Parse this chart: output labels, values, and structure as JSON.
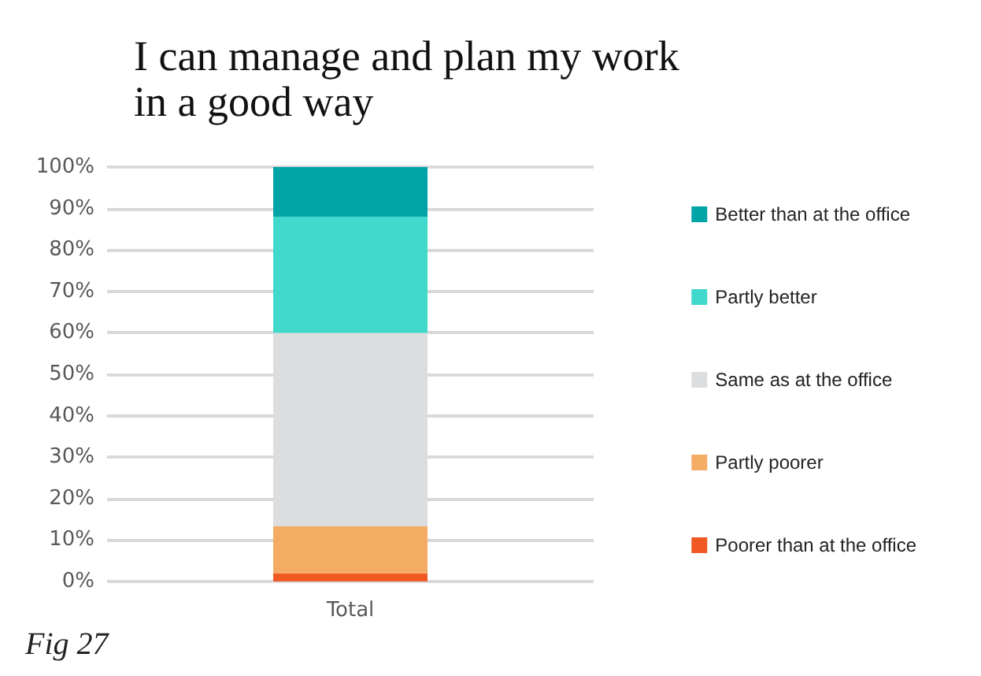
{
  "chart_data": {
    "type": "bar",
    "title": "I can manage and plan my work\nin a good way",
    "categories": [
      "Total"
    ],
    "stacked": true,
    "series": [
      {
        "name": "Poorer than at the office",
        "color": "#f05a22",
        "values": [
          2
        ]
      },
      {
        "name": "Partly poorer",
        "color": "#f4ab64",
        "values": [
          11.3
        ]
      },
      {
        "name": "Same as at the office",
        "color": "#dcdddf",
        "values": [
          46.7
        ]
      },
      {
        "name": "Partly better",
        "color": "#40d9cc",
        "values": [
          28
        ]
      },
      {
        "name": "Better than at the office",
        "color": "#00a3a6",
        "values": [
          12
        ]
      }
    ],
    "ylim": [
      0,
      100
    ],
    "yticks": [
      {
        "value": 0,
        "label": "0%"
      },
      {
        "value": 10,
        "label": "10%"
      },
      {
        "value": 20,
        "label": "20%"
      },
      {
        "value": 30,
        "label": "30%"
      },
      {
        "value": 40,
        "label": "40%"
      },
      {
        "value": 50,
        "label": "50%"
      },
      {
        "value": 60,
        "label": "60%"
      },
      {
        "value": 70,
        "label": "70%"
      },
      {
        "value": 80,
        "label": "80%"
      },
      {
        "value": 90,
        "label": "90%"
      },
      {
        "value": 100,
        "label": "100%"
      }
    ],
    "grid": "y",
    "legend": "right",
    "annotations": [
      "Fig 27"
    ]
  }
}
